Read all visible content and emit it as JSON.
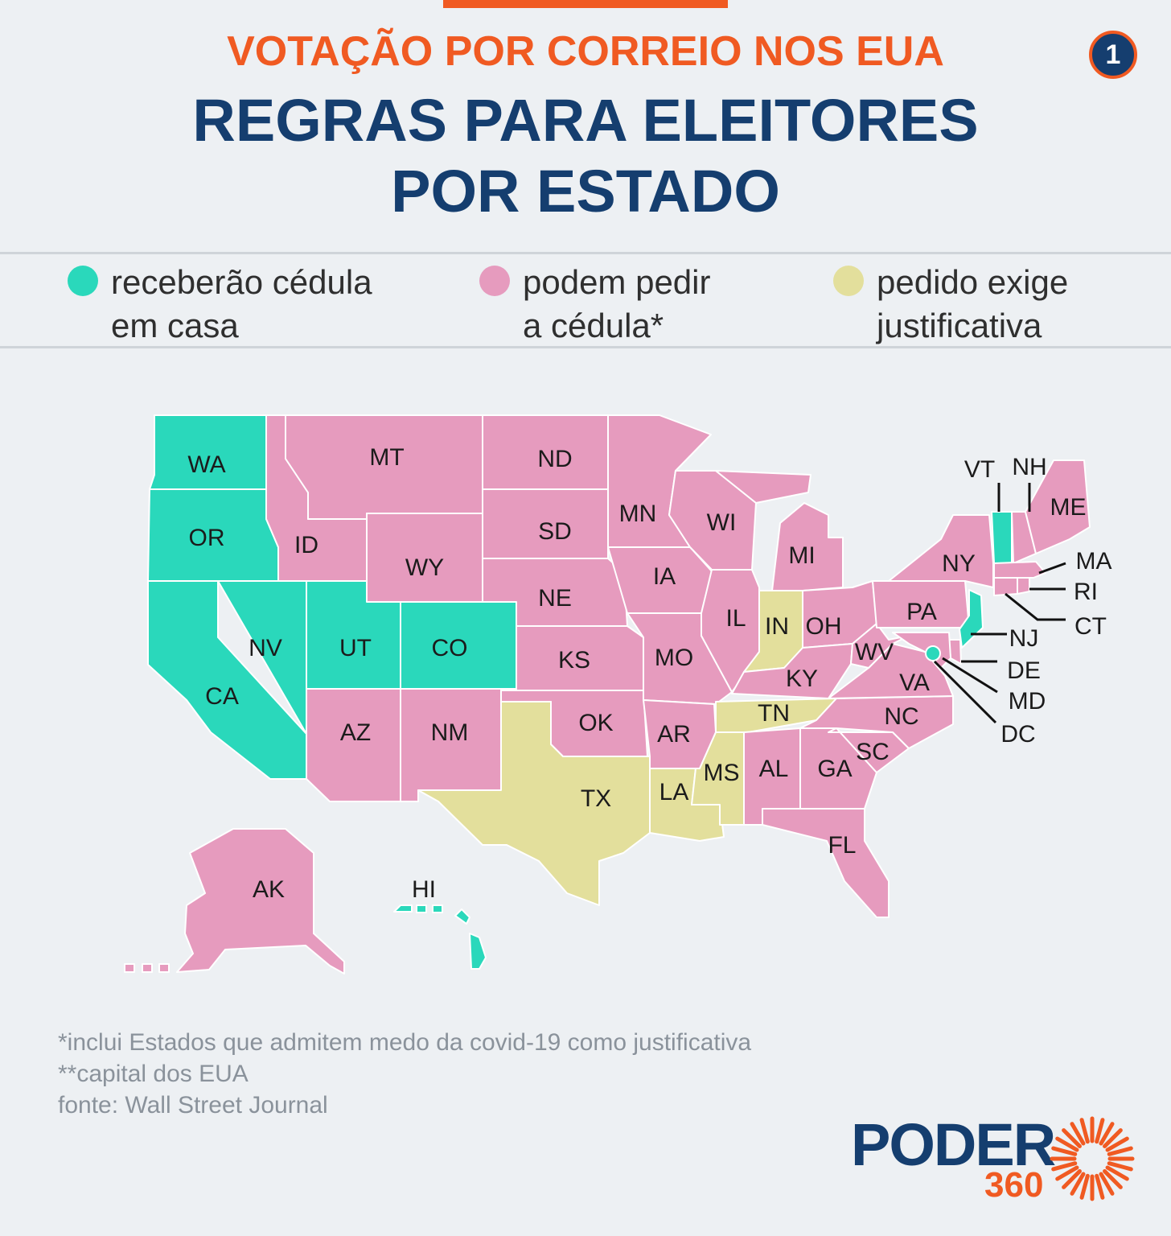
{
  "header": {
    "kicker": "VOTAÇÃO POR CORREIO NOS EUA",
    "title_line1": "REGRAS PARA ELEITORES",
    "title_line2": "POR ESTADO",
    "page_number": "1"
  },
  "colors": {
    "green": "#2ad8bb",
    "pink": "#e69bbe",
    "yellow": "#e3df9c",
    "navy": "#153e6f",
    "orange": "#f05a22"
  },
  "legend": [
    {
      "line1": "receberão cédula",
      "line2": "em casa",
      "color": "#2ad8bb"
    },
    {
      "line1": "podem pedir",
      "line2": "a cédula*",
      "color": "#e69bbe"
    },
    {
      "line1": "pedido exige",
      "line2": "justificativa",
      "color": "#e3df9c"
    }
  ],
  "states": {
    "WA": "green",
    "OR": "green",
    "CA": "green",
    "NV": "green",
    "UT": "green",
    "CO": "green",
    "HI": "green",
    "VT": "green",
    "NJ": "green",
    "DC": "green",
    "MT": "pink",
    "ID": "pink",
    "WY": "pink",
    "ND": "pink",
    "SD": "pink",
    "NE": "pink",
    "KS": "pink",
    "OK": "pink",
    "AZ": "pink",
    "NM": "pink",
    "MN": "pink",
    "IA": "pink",
    "MO": "pink",
    "AR": "pink",
    "WI": "pink",
    "IL": "pink",
    "MI": "pink",
    "OH": "pink",
    "KY": "pink",
    "WV": "pink",
    "VA": "pink",
    "NC": "pink",
    "SC": "pink",
    "GA": "pink",
    "AL": "pink",
    "FL": "pink",
    "PA": "pink",
    "NY": "pink",
    "ME": "pink",
    "NH": "pink",
    "MA": "pink",
    "RI": "pink",
    "CT": "pink",
    "DE": "pink",
    "MD": "pink",
    "AK": "pink",
    "TX": "yellow",
    "LA": "yellow",
    "MS": "yellow",
    "TN": "yellow",
    "IN": "yellow"
  },
  "labels": {
    "WA": "WA",
    "OR": "OR",
    "CA": "CA",
    "NV": "NV",
    "ID": "ID",
    "MT": "MT",
    "WY": "WY",
    "UT": "UT",
    "CO": "CO",
    "AZ": "AZ",
    "NM": "NM",
    "ND": "ND",
    "SD": "SD",
    "NE": "NE",
    "KS": "KS",
    "OK": "OK",
    "TX": "TX",
    "MN": "MN",
    "IA": "IA",
    "MO": "MO",
    "AR": "AR",
    "LA": "LA",
    "WI": "WI",
    "IL": "IL",
    "MI": "MI",
    "IN": "IN",
    "OH": "OH",
    "KY": "KY",
    "TN": "TN",
    "MS": "MS",
    "AL": "AL",
    "GA": "GA",
    "FL": "FL",
    "SC": "SC",
    "NC": "NC",
    "VA": "VA",
    "WV": "WV",
    "PA": "PA",
    "NY": "NY",
    "VT": "VT",
    "NH": "NH",
    "ME": "ME",
    "MA": "MA",
    "RI": "RI",
    "CT": "CT",
    "NJ": "NJ",
    "DE": "DE",
    "MD": "MD",
    "DC": "DC",
    "AK": "AK",
    "HI": "HI"
  },
  "notes": {
    "line1": "*inclui Estados que admitem medo da covid-19 como justificativa",
    "line2": "**capital dos EUA",
    "line3": "fonte: Wall Street Journal"
  },
  "logo": {
    "word": "PODER",
    "number": "360"
  }
}
